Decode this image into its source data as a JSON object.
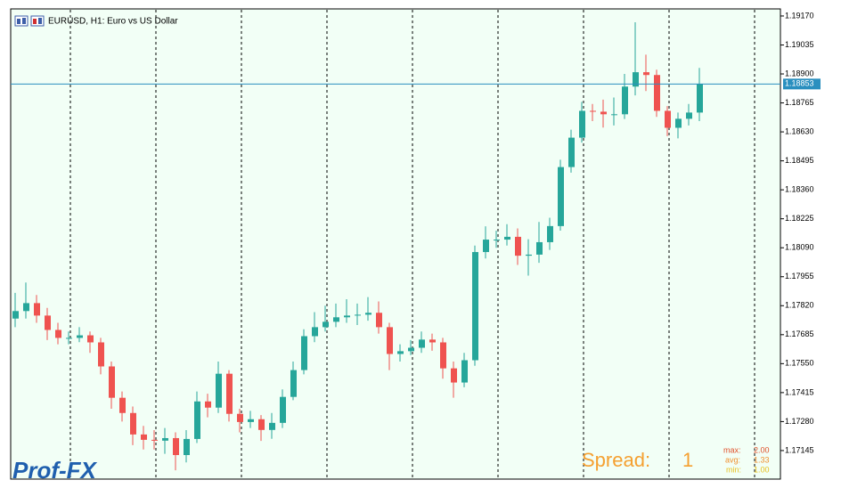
{
  "chart_data": {
    "type": "candlestick",
    "title": "EURUSD, H1:  Euro vs US Dollar",
    "ylim": [
      1.17012,
      1.19203
    ],
    "yticks": [
      {
        "value": 1.1917,
        "label": "1.19170"
      },
      {
        "value": 1.19035,
        "label": "1.19035"
      },
      {
        "value": 1.189,
        "label": "1.18900"
      },
      {
        "value": 1.18765,
        "label": "1.18765"
      },
      {
        "value": 1.1863,
        "label": "1.18630"
      },
      {
        "value": 1.18495,
        "label": "1.18495"
      },
      {
        "value": 1.1836,
        "label": "1.18360"
      },
      {
        "value": 1.18225,
        "label": "1.18225"
      },
      {
        "value": 1.1809,
        "label": "1.18090"
      },
      {
        "value": 1.17955,
        "label": "1.17955"
      },
      {
        "value": 1.1782,
        "label": "1.17820"
      },
      {
        "value": 1.17685,
        "label": "1.17685"
      },
      {
        "value": 1.1755,
        "label": "1.17550"
      },
      {
        "value": 1.17415,
        "label": "1.17415"
      },
      {
        "value": 1.1728,
        "label": "1.17280"
      },
      {
        "value": 1.17145,
        "label": "1.17145"
      }
    ],
    "bid": 1.18853,
    "up_color": "#26a69a",
    "down_color": "#ef5350",
    "open": [
      1.1776,
      1.17795,
      1.17832,
      1.17774,
      1.17707,
      1.1767,
      1.1767,
      1.17682,
      1.17649,
      1.17537,
      1.17391,
      1.1732,
      1.1722,
      1.17195,
      1.17191,
      1.17203,
      1.17124,
      1.17199,
      1.17374,
      1.17345,
      1.17503,
      1.17316,
      1.17278,
      1.17291,
      1.17241,
      1.17274,
      1.17395,
      1.1752,
      1.17678,
      1.1772,
      1.17745,
      1.17766,
      1.17774,
      1.17778,
      1.17787,
      1.1772,
      1.17595,
      1.17608,
      1.17624,
      1.17662,
      1.17649,
      1.17528,
      1.17462,
      1.17566,
      1.1807,
      1.18128,
      1.18128,
      1.18141,
      1.18053,
      1.18058,
      1.18116,
      1.18191,
      1.18466,
      1.18603,
      1.18728,
      1.18724,
      1.18712,
      1.18712,
      1.18841,
      1.18908,
      1.18895,
      1.18728,
      1.18649,
      1.18691,
      1.1872
    ],
    "high": [
      1.1788,
      1.17928,
      1.1787,
      1.1781,
      1.1774,
      1.177,
      1.1772,
      1.177,
      1.1767,
      1.1756,
      1.1742,
      1.1735,
      1.1726,
      1.1724,
      1.1725,
      1.1723,
      1.1724,
      1.1742,
      1.1741,
      1.1756,
      1.1752,
      1.1734,
      1.1733,
      1.1731,
      1.1732,
      1.1743,
      1.1756,
      1.1771,
      1.1779,
      1.1782,
      1.1783,
      1.1785,
      1.1783,
      1.1786,
      1.1784,
      1.1774,
      1.1764,
      1.1766,
      1.177,
      1.1769,
      1.1767,
      1.1756,
      1.176,
      1.181,
      1.1819,
      1.1817,
      1.182,
      1.1818,
      1.1813,
      1.1821,
      1.1823,
      1.185,
      1.1864,
      1.1877,
      1.1876,
      1.1878,
      1.1879,
      1.189,
      1.19141,
      1.1899,
      1.1892,
      1.1875,
      1.1872,
      1.1876,
      1.18928
    ],
    "low": [
      1.1772,
      1.1776,
      1.1774,
      1.1766,
      1.1764,
      1.1764,
      1.1765,
      1.176,
      1.175,
      1.1734,
      1.1728,
      1.1717,
      1.1715,
      1.1715,
      1.1713,
      1.17053,
      1.1709,
      1.1718,
      1.173,
      1.1732,
      1.1728,
      1.1723,
      1.1725,
      1.1719,
      1.172,
      1.1725,
      1.1738,
      1.175,
      1.1765,
      1.177,
      1.1772,
      1.1774,
      1.1773,
      1.1775,
      1.1769,
      1.1752,
      1.1756,
      1.1759,
      1.176,
      1.1761,
      1.1748,
      1.17391,
      1.1744,
      1.1754,
      1.1804,
      1.1809,
      1.181,
      1.1801,
      1.1796,
      1.1802,
      1.1808,
      1.1817,
      1.1844,
      1.1858,
      1.1868,
      1.1865,
      1.1866,
      1.1869,
      1.188,
      1.1882,
      1.187,
      1.1861,
      1.186,
      1.1866,
      1.1868
    ],
    "close": [
      1.17795,
      1.17832,
      1.17774,
      1.17707,
      1.1767,
      1.1767,
      1.17682,
      1.17649,
      1.17537,
      1.17391,
      1.1732,
      1.1722,
      1.17195,
      1.17191,
      1.17203,
      1.17124,
      1.17199,
      1.17374,
      1.17345,
      1.17503,
      1.17316,
      1.17278,
      1.17291,
      1.17241,
      1.17274,
      1.17395,
      1.1752,
      1.17678,
      1.1772,
      1.17745,
      1.17766,
      1.17774,
      1.17778,
      1.17787,
      1.1772,
      1.17595,
      1.17608,
      1.17624,
      1.17662,
      1.17649,
      1.17528,
      1.17462,
      1.17566,
      1.1807,
      1.18128,
      1.18128,
      1.18141,
      1.18053,
      1.18058,
      1.18116,
      1.18191,
      1.18466,
      1.18603,
      1.18728,
      1.18724,
      1.18712,
      1.18712,
      1.18841,
      1.18908,
      1.18895,
      1.18728,
      1.18649,
      1.18691,
      1.1872,
      1.18853
    ]
  },
  "spread_panel": {
    "label": "Spread:",
    "value": 1,
    "stats": [
      {
        "label": "max:",
        "value": "2.00"
      },
      {
        "label": "avg:",
        "value": "1.33"
      },
      {
        "label": "min:",
        "value": "1.00"
      }
    ]
  },
  "logo": "Prof-FX"
}
